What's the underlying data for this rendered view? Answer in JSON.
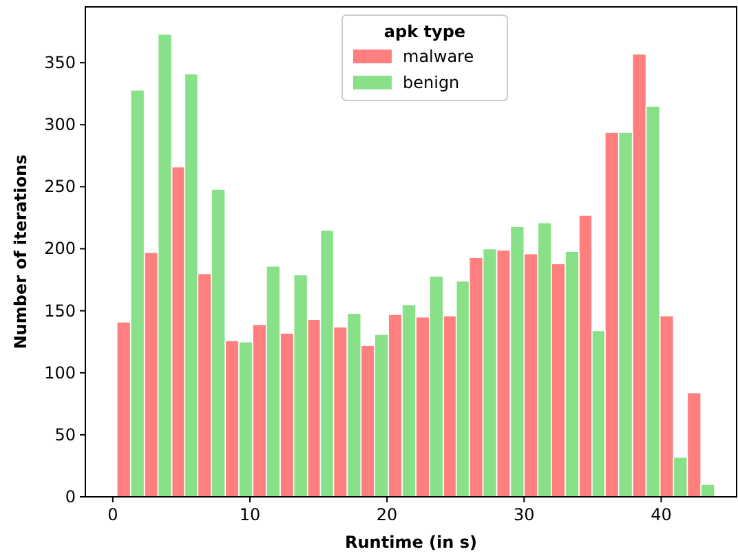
{
  "chart_data": {
    "type": "histogram",
    "xlabel": "Runtime (in s)",
    "ylabel": "Number of iterations",
    "legend_title": "apk type",
    "legend": "top",
    "grid": false,
    "bins": [
      0.3,
      2.3,
      4.3,
      6.2,
      8.2,
      10.2,
      12.2,
      14.2,
      16.1,
      18.1,
      20.1,
      22.1,
      24.1,
      26.0,
      28.0,
      30.0,
      32.0,
      34.0,
      35.9,
      37.9,
      39.9,
      41.9,
      43.9
    ],
    "series": [
      {
        "name": "malware",
        "color": "#ff7f7f",
        "values": [
          141,
          197,
          266,
          180,
          126,
          139,
          132,
          143,
          137,
          122,
          147,
          145,
          146,
          193,
          199,
          196,
          188,
          227,
          294,
          357,
          146,
          84
        ]
      },
      {
        "name": "benign",
        "color": "#88e088",
        "values": [
          328,
          373,
          341,
          248,
          125,
          186,
          179,
          215,
          148,
          131,
          155,
          178,
          174,
          200,
          218,
          221,
          198,
          134,
          294,
          315,
          32,
          10
        ]
      }
    ],
    "xlim": [
      -2.0,
      45.5
    ],
    "ylim": [
      0,
      395
    ],
    "xticks": [
      0,
      10,
      20,
      30,
      40
    ],
    "yticks": [
      0,
      50,
      100,
      150,
      200,
      250,
      300,
      350
    ]
  }
}
